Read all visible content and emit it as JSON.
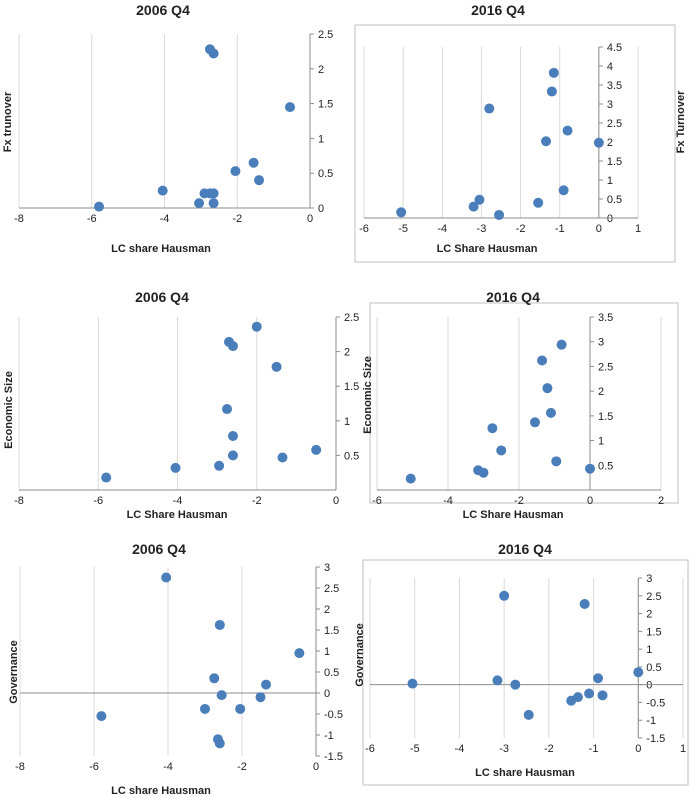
{
  "colors": {
    "marker": "#4a7ebb",
    "grid": "#d9d9d9",
    "axis": "#8c8c8c",
    "frame": "#bfbfbf"
  },
  "chart_data": [
    {
      "type": "scatter",
      "title": "2006 Q4",
      "xlabel": "LC share Hausman",
      "ylabel": "Fx trunover",
      "xlim": [
        -8,
        0
      ],
      "ylim": [
        0,
        2.5
      ],
      "xticks": [
        "-8",
        "-6",
        "-4",
        "-2",
        "0"
      ],
      "yticks": [
        "0",
        "0.5",
        "1",
        "1.5",
        "2",
        "2.5"
      ],
      "grid": true,
      "y_axis_side": "right",
      "x": [
        -5.8,
        -4.05,
        -2.75,
        -2.65,
        -2.9,
        -3.05,
        -2.65,
        -2.05,
        -1.55,
        -1.4,
        -0.55,
        -2.75,
        -2.65
      ],
      "y": [
        0.02,
        0.25,
        0.21,
        0.21,
        0.21,
        0.07,
        0.07,
        0.53,
        0.65,
        0.4,
        1.45,
        2.28,
        2.22
      ]
    },
    {
      "type": "scatter",
      "title": "2016 Q4",
      "xlabel": "LC Share Hausman",
      "ylabel": "Fx Turnover",
      "xlim": [
        -6,
        1
      ],
      "ylim": [
        0,
        4.5
      ],
      "xticks": [
        "-6",
        "-5",
        "-4",
        "-3",
        "-2",
        "-1",
        "0",
        "1"
      ],
      "yticks": [
        "0",
        "0.5",
        "1",
        "1.5",
        "2",
        "2.5",
        "3",
        "3.5",
        "4",
        "4.5"
      ],
      "grid": true,
      "y_axis_side": "right",
      "x": [
        -5.05,
        -3.2,
        -3.05,
        -2.55,
        -1.55,
        -0.9,
        -2.8,
        -1.35,
        -0.8,
        0.0,
        -1.2,
        -1.15
      ],
      "y": [
        0.15,
        0.3,
        0.48,
        0.08,
        0.4,
        0.73,
        2.88,
        2.02,
        2.3,
        1.98,
        3.33,
        3.82
      ]
    },
    {
      "type": "scatter",
      "title": "2006 Q4",
      "xlabel": "LC Share Hausman",
      "ylabel": "Economic Size",
      "xlim": [
        -8,
        0
      ],
      "ylim": [
        0,
        2.5
      ],
      "xticks": [
        "-8",
        "-6",
        "-4",
        "-2",
        "0"
      ],
      "yticks": [
        "0.5",
        "1",
        "1.5",
        "2",
        "2.5"
      ],
      "grid": true,
      "y_axis_side": "right",
      "x": [
        -5.8,
        -4.05,
        -2.95,
        -2.6,
        -1.35,
        -0.5,
        -2.6,
        -2.75,
        -1.5,
        -2.7,
        -2.6,
        -2.0
      ],
      "y": [
        0.18,
        0.32,
        0.35,
        0.5,
        0.47,
        0.58,
        0.78,
        1.17,
        1.78,
        2.14,
        2.08,
        2.36
      ]
    },
    {
      "type": "scatter",
      "title": "2016 Q4",
      "xlabel": "LC Share Hausman",
      "ylabel": "Economic Size",
      "xlim": [
        -6,
        2
      ],
      "ylim": [
        0,
        3.5
      ],
      "xticks": [
        "-6",
        "-4",
        "-2",
        "0",
        "2"
      ],
      "yticks": [
        "0.5",
        "1",
        "1.5",
        "2",
        "2.5",
        "3",
        "3.5"
      ],
      "grid": true,
      "y_axis_side": "right",
      "x": [
        -5.05,
        -3.15,
        -3.0,
        -2.5,
        -2.75,
        -1.55,
        -1.1,
        -1.2,
        -1.35,
        -0.8,
        -0.95,
        0.0
      ],
      "y": [
        0.23,
        0.4,
        0.35,
        0.8,
        1.25,
        1.37,
        1.56,
        2.06,
        2.62,
        2.94,
        0.58,
        0.43
      ]
    },
    {
      "type": "scatter",
      "title": "2006 Q4",
      "xlabel": "LC share Hausman",
      "ylabel": "Governance",
      "xlim": [
        -8,
        0
      ],
      "ylim": [
        -1.5,
        3
      ],
      "xticks": [
        "-8",
        "-6",
        "-4",
        "-2",
        "0"
      ],
      "yticks": [
        "-1.5",
        "-1",
        "-0.5",
        "0",
        "0.5",
        "1",
        "1.5",
        "2",
        "2.5",
        "3"
      ],
      "grid": true,
      "y_axis_side": "right",
      "x": [
        -5.8,
        -4.05,
        -2.6,
        -2.65,
        -2.75,
        -2.55,
        -3.0,
        -2.05,
        -1.5,
        -1.35,
        -0.45,
        -2.6
      ],
      "y": [
        -0.55,
        2.75,
        1.62,
        -1.1,
        0.35,
        -0.05,
        -0.38,
        -0.38,
        -0.1,
        0.2,
        0.95,
        -1.2
      ]
    },
    {
      "type": "scatter",
      "title": "2016 Q4",
      "xlabel": "LC share Hausman",
      "ylabel": "Governance",
      "xlim": [
        -6,
        1
      ],
      "ylim": [
        -1.5,
        3
      ],
      "xticks": [
        "-6",
        "-5",
        "-4",
        "-3",
        "-2",
        "-1",
        "0",
        "1"
      ],
      "yticks": [
        "-1.5",
        "-1",
        "-0.5",
        "0",
        "0.5",
        "1",
        "1.5",
        "2",
        "2.5",
        "3"
      ],
      "grid": true,
      "y_axis_side": "right",
      "x": [
        -5.05,
        -3.15,
        -2.75,
        -2.45,
        -1.5,
        -1.35,
        -1.1,
        -0.9,
        -0.8,
        -3.0,
        -1.2,
        0.0
      ],
      "y": [
        0.03,
        0.12,
        0.0,
        -0.85,
        -0.45,
        -0.35,
        -0.25,
        0.18,
        -0.3,
        2.5,
        2.27,
        0.35
      ]
    }
  ]
}
